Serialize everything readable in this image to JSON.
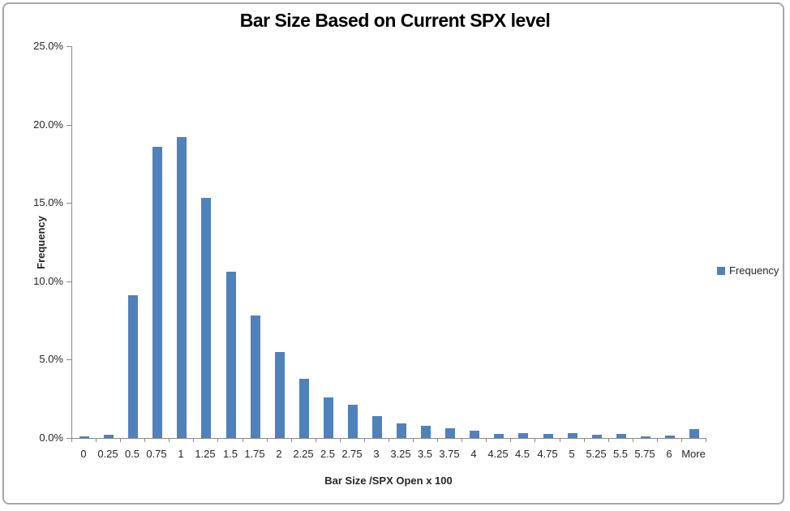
{
  "chart_data": {
    "type": "bar",
    "title": "Bar Size Based on Current SPX level",
    "xlabel": "Bar Size /SPX Open x 100",
    "ylabel": "Frequency",
    "categories": [
      "0",
      "0.25",
      "0.5",
      "0.75",
      "1",
      "1.25",
      "1.5",
      "1.75",
      "2",
      "2.25",
      "2.5",
      "2.75",
      "3",
      "3.25",
      "3.5",
      "3.75",
      "4",
      "4.25",
      "4.5",
      "4.75",
      "5",
      "5.25",
      "5.5",
      "5.75",
      "6",
      "More"
    ],
    "series": [
      {
        "name": "Frequency",
        "values": [
          0.1,
          0.2,
          9.1,
          18.6,
          19.2,
          15.3,
          10.6,
          7.8,
          5.5,
          3.8,
          2.6,
          2.1,
          1.4,
          0.95,
          0.77,
          0.6,
          0.48,
          0.27,
          0.32,
          0.26,
          0.32,
          0.19,
          0.26,
          0.12,
          0.14,
          0.55
        ]
      }
    ],
    "values_unit": "percent",
    "ylim": [
      0,
      25
    ],
    "ytick_step": 5,
    "ytick_labels": [
      "0.0%",
      "5.0%",
      "10.0%",
      "15.0%",
      "20.0%",
      "25.0%"
    ],
    "grid": false,
    "legend": {
      "position": "right",
      "entries": [
        "Frequency"
      ]
    }
  },
  "colors": {
    "bar": "#4f81bd",
    "axis_line": "#898989",
    "text": "#262626",
    "frame_border": "#a6a6a6"
  }
}
